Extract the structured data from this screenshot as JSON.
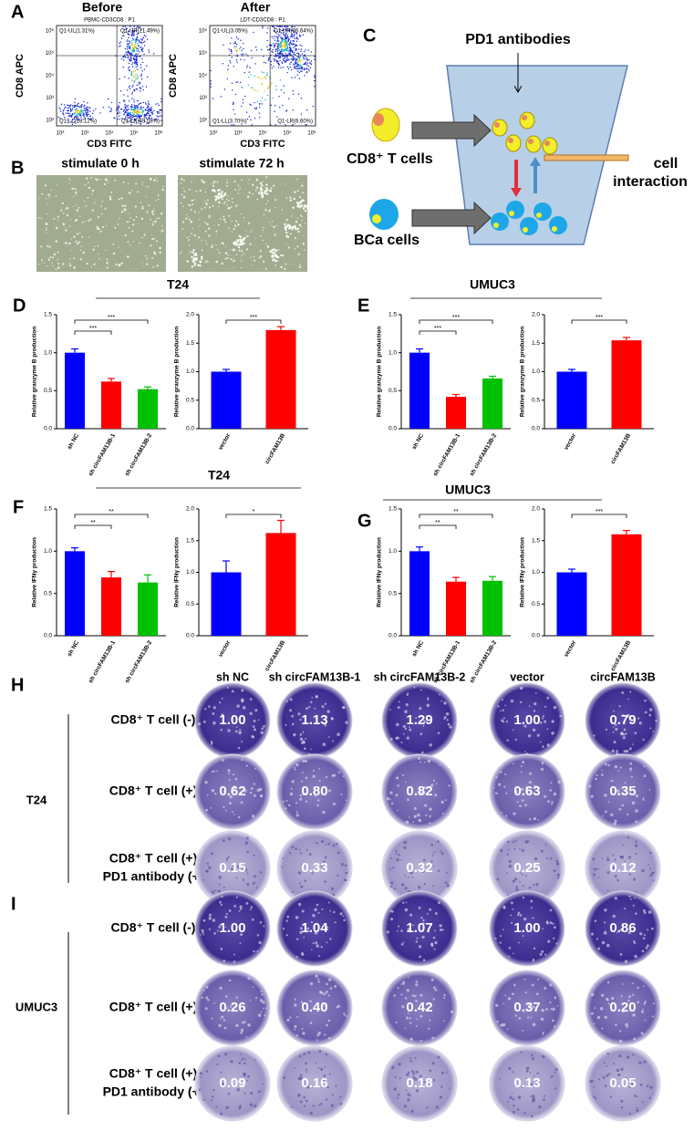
{
  "flow": {
    "label": "A",
    "xlabel": "CD3 FITC",
    "ylabel": "CD8 APC",
    "xticks": [
      "10²",
      "10³",
      "10⁴",
      "10⁵",
      "10⁶"
    ],
    "yticks": [
      "10⁶",
      "10⁵",
      "10⁴",
      "10³",
      "10²"
    ],
    "plots": [
      {
        "title": "Before",
        "gate": "PBMC-CD3CD8 : P1",
        "quadrants": [
          "Q1-UL(1.31%)",
          "Q1-UR(21.49%)",
          "Q1-LL(28.12%)",
          "Q1-LR(49.08%)"
        ]
      },
      {
        "title": "After",
        "gate": "LDT-CD3CD8 : P1",
        "quadrants": [
          "Q1-UL(3.05%)",
          "Q1-UR(86.64%)",
          "Q1-LL(3.70%)",
          "Q1-LR(6.60%)"
        ]
      }
    ]
  },
  "microscopy": {
    "label": "B",
    "captions": [
      "stimulate 0 h",
      "stimulate 72 h"
    ]
  },
  "diagram": {
    "label": "C",
    "antibody": "PD1 antibodies",
    "t_cells": "CD8⁺ T cells",
    "bca_cells": "BCa cells",
    "interaction": [
      "cell",
      "interaction"
    ]
  },
  "bar_panels": [
    {
      "label": "D",
      "title": "T24"
    },
    {
      "label": "E",
      "title": "UMUC3"
    },
    {
      "label": "F",
      "title": "T24"
    },
    {
      "label": "G",
      "title": "UMUC3"
    }
  ],
  "chart_data": [
    {
      "type": "bar",
      "ylabel": "Relative granzyme B production",
      "categories": [
        "sh NC",
        "sh circFAM13B-1",
        "sh circFAM13B-2"
      ],
      "values": [
        1.0,
        0.62,
        0.52
      ],
      "errors": [
        0.05,
        0.04,
        0.03
      ],
      "colors": [
        "#0000ff",
        "#ff0000",
        "#00c000"
      ],
      "ylim": [
        0,
        1.5
      ],
      "yticks": [
        {
          "value": 0,
          "label": "0.0"
        },
        0.5,
        {
          "value": 1,
          "label": "1.0"
        },
        1.5
      ],
      "comparisons": [
        {
          "between": [
            0,
            1
          ],
          "label": "***"
        },
        {
          "between": [
            0,
            2
          ],
          "label": "***"
        }
      ]
    },
    {
      "type": "bar",
      "ylabel": "Relative granzyme B production",
      "categories": [
        "vector",
        "circFAM13B"
      ],
      "values": [
        1.0,
        1.73
      ],
      "errors": [
        0.04,
        0.06
      ],
      "colors": [
        "#0000ff",
        "#ff0000"
      ],
      "ylim": [
        0,
        2
      ],
      "yticks": [
        {
          "value": 0,
          "label": "0.0"
        },
        0.5,
        {
          "value": 1,
          "label": "1.0"
        },
        1.5,
        {
          "value": 2,
          "label": "2.0"
        }
      ],
      "comparisons": [
        {
          "between": [
            0,
            1
          ],
          "label": "***"
        }
      ]
    },
    {
      "type": "bar",
      "ylabel": "Relative granzyme B production",
      "categories": [
        "sh NC",
        "sh circFAM13B-1",
        "sh circFAM13B-2"
      ],
      "values": [
        1.0,
        0.42,
        0.66
      ],
      "errors": [
        0.05,
        0.03,
        0.03
      ],
      "colors": [
        "#0000ff",
        "#ff0000",
        "#00c000"
      ],
      "ylim": [
        0,
        1.5
      ],
      "yticks": [
        {
          "value": 0,
          "label": "0.0"
        },
        0.5,
        {
          "value": 1,
          "label": "1.0"
        },
        1.5
      ],
      "comparisons": [
        {
          "between": [
            0,
            1
          ],
          "label": "***"
        },
        {
          "between": [
            0,
            2
          ],
          "label": "***"
        }
      ]
    },
    {
      "type": "bar",
      "ylabel": "Relative granzyme B production",
      "categories": [
        "vector",
        "circFAM13B"
      ],
      "values": [
        1.0,
        1.55
      ],
      "errors": [
        0.04,
        0.05
      ],
      "colors": [
        "#0000ff",
        "#ff0000"
      ],
      "ylim": [
        0,
        2
      ],
      "yticks": [
        {
          "value": 0,
          "label": "0.0"
        },
        0.5,
        {
          "value": 1,
          "label": "1.0"
        },
        1.5,
        {
          "value": 2,
          "label": "2.0"
        }
      ],
      "comparisons": [
        {
          "between": [
            0,
            1
          ],
          "label": "***"
        }
      ]
    },
    {
      "type": "bar",
      "ylabel": "Relative IFNγ production",
      "categories": [
        "sh NC",
        "sh circFAM13B-1",
        "sh circFAM13B-2"
      ],
      "values": [
        1.0,
        0.69,
        0.63
      ],
      "errors": [
        0.04,
        0.07,
        0.09
      ],
      "colors": [
        "#0000ff",
        "#ff0000",
        "#00c000"
      ],
      "ylim": [
        0,
        1.5
      ],
      "yticks": [
        {
          "value": 0,
          "label": "0.0"
        },
        0.5,
        {
          "value": 1,
          "label": "1.0"
        },
        1.5
      ],
      "comparisons": [
        {
          "between": [
            0,
            1
          ],
          "label": "**"
        },
        {
          "between": [
            0,
            2
          ],
          "label": "**"
        }
      ]
    },
    {
      "type": "bar",
      "ylabel": "Relative IFNγ production",
      "categories": [
        "vector",
        "circFAM13B"
      ],
      "values": [
        1.0,
        1.62
      ],
      "errors": [
        0.18,
        0.2
      ],
      "colors": [
        "#0000ff",
        "#ff0000"
      ],
      "ylim": [
        0,
        2
      ],
      "yticks": [
        {
          "value": 0,
          "label": "0.0"
        },
        0.5,
        {
          "value": 1,
          "label": "1.0"
        },
        1.5,
        {
          "value": 2,
          "label": "2.0"
        }
      ],
      "comparisons": [
        {
          "between": [
            0,
            1
          ],
          "label": "*"
        }
      ]
    },
    {
      "type": "bar",
      "ylabel": "Relative IFNγ production",
      "categories": [
        "sh NC",
        "sh circFAM13B-1",
        "sh circFAM13B-2"
      ],
      "values": [
        1.0,
        0.64,
        0.65
      ],
      "errors": [
        0.05,
        0.05,
        0.05
      ],
      "colors": [
        "#0000ff",
        "#ff0000",
        "#00c000"
      ],
      "ylim": [
        0,
        1.5
      ],
      "yticks": [
        {
          "value": 0,
          "label": "0.0"
        },
        0.5,
        {
          "value": 1,
          "label": "1.0"
        },
        1.5
      ],
      "comparisons": [
        {
          "between": [
            0,
            1
          ],
          "label": "**"
        },
        {
          "between": [
            0,
            2
          ],
          "label": "**"
        }
      ]
    },
    {
      "type": "bar",
      "ylabel": "Relative IFNγ production",
      "categories": [
        "vector",
        "circFAM13B"
      ],
      "values": [
        1.0,
        1.6
      ],
      "errors": [
        0.05,
        0.06
      ],
      "colors": [
        "#0000ff",
        "#ff0000"
      ],
      "ylim": [
        0,
        2
      ],
      "yticks": [
        {
          "value": 0,
          "label": "0.0"
        },
        0.5,
        {
          "value": 1,
          "label": "1.0"
        },
        1.5,
        {
          "value": 2,
          "label": "2.0"
        }
      ],
      "comparisons": [
        {
          "between": [
            0,
            1
          ],
          "label": "***"
        }
      ]
    }
  ],
  "colony": {
    "columns": [
      "sh NC",
      "sh circFAM13B-1",
      "sh circFAM13B-2",
      "vector",
      "circFAM13B"
    ],
    "groups": [
      {
        "label": "H",
        "cell_line": "T24",
        "rows": [
          {
            "condition": [
              "CD8⁺ T cell (-)"
            ],
            "values": [
              "1.00",
              "1.13",
              "1.29",
              "1.00",
              "0.79"
            ]
          },
          {
            "condition": [
              "CD8⁺ T cell (+)"
            ],
            "values": [
              "0.62",
              "0.80",
              "0.82",
              "0.63",
              "0.35"
            ]
          },
          {
            "condition": [
              "CD8⁺ T cell (+)",
              "PD1 antibody (+)"
            ],
            "values": [
              "0.15",
              "0.33",
              "0.32",
              "0.25",
              "0.12"
            ]
          }
        ]
      },
      {
        "label": "I",
        "cell_line": "UMUC3",
        "rows": [
          {
            "condition": [
              "CD8⁺ T cell (-)"
            ],
            "values": [
              "1.00",
              "1.04",
              "1.07",
              "1.00",
              "0.86"
            ]
          },
          {
            "condition": [
              "CD8⁺ T cell (+)"
            ],
            "values": [
              "0.26",
              "0.40",
              "0.42",
              "0.37",
              "0.20"
            ]
          },
          {
            "condition": [
              "CD8⁺ T cell (+)",
              "PD1 antibody (+)"
            ],
            "values": [
              "0.09",
              "0.16",
              "0.18",
              "0.13",
              "0.05"
            ]
          }
        ]
      }
    ]
  }
}
